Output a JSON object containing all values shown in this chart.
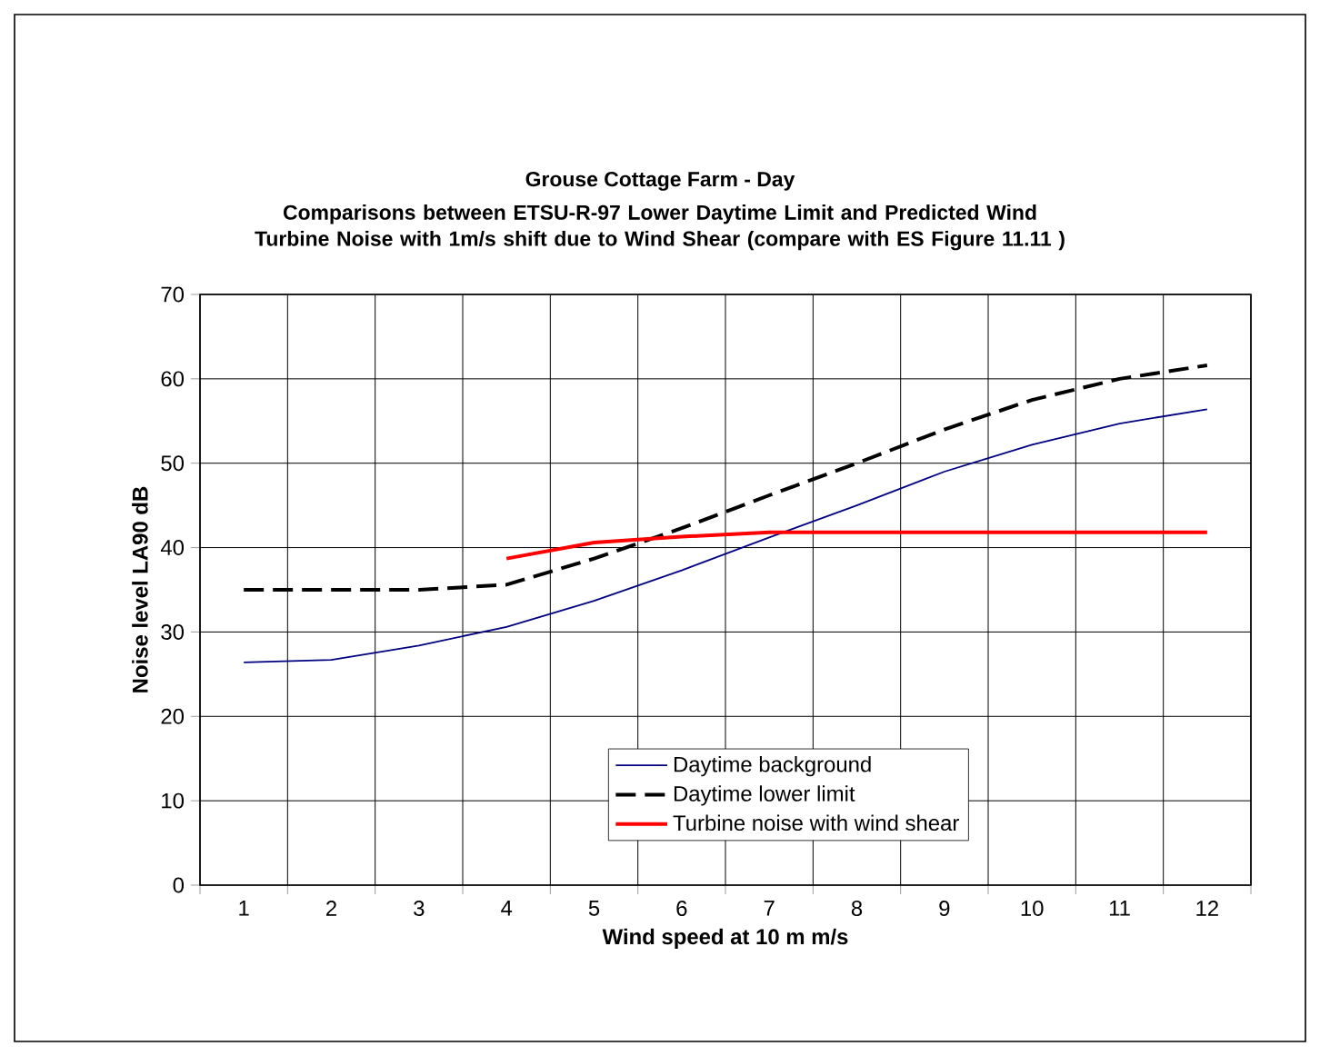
{
  "chart_data": {
    "type": "line",
    "title": "Grouse Cottage Farm - Day",
    "subtitle": "Comparisons between ETSU-R-97 Lower Daytime Limit and Predicted Wind Turbine Noise with 1m/s shift due to Wind Shear (compare with ES Figure 11.11 )",
    "xlabel": "Wind speed at 10 m m/s",
    "ylabel": "Noise level LA90 dB",
    "categories": [
      "1",
      "2",
      "3",
      "4",
      "5",
      "6",
      "7",
      "8",
      "9",
      "10",
      "11",
      "12"
    ],
    "series": [
      {
        "name": "Daytime background",
        "color": "#000080",
        "line_style": "solid",
        "values": [
          26.4,
          26.7,
          28.4,
          30.6,
          33.7,
          37.3,
          41.2,
          45.0,
          49.0,
          52.2,
          54.7,
          56.4
        ]
      },
      {
        "name": "Daytime lower limit",
        "color": "#000000",
        "line_style": "dashed",
        "values": [
          35,
          35,
          35,
          35.6,
          38.7,
          42.3,
          46.2,
          50,
          54,
          57.5,
          60,
          61.6
        ]
      },
      {
        "name": "Turbine noise with wind shear",
        "color": "#ff0000",
        "line_style": "solid",
        "values": [
          null,
          null,
          null,
          38.7,
          40.6,
          41.3,
          41.8,
          41.8,
          41.8,
          41.8,
          41.8,
          41.8
        ]
      }
    ],
    "ylim": [
      0,
      70
    ],
    "yticks": [
      0,
      10,
      20,
      30,
      40,
      50,
      60,
      70
    ],
    "grid": true,
    "legend": "bottom"
  }
}
